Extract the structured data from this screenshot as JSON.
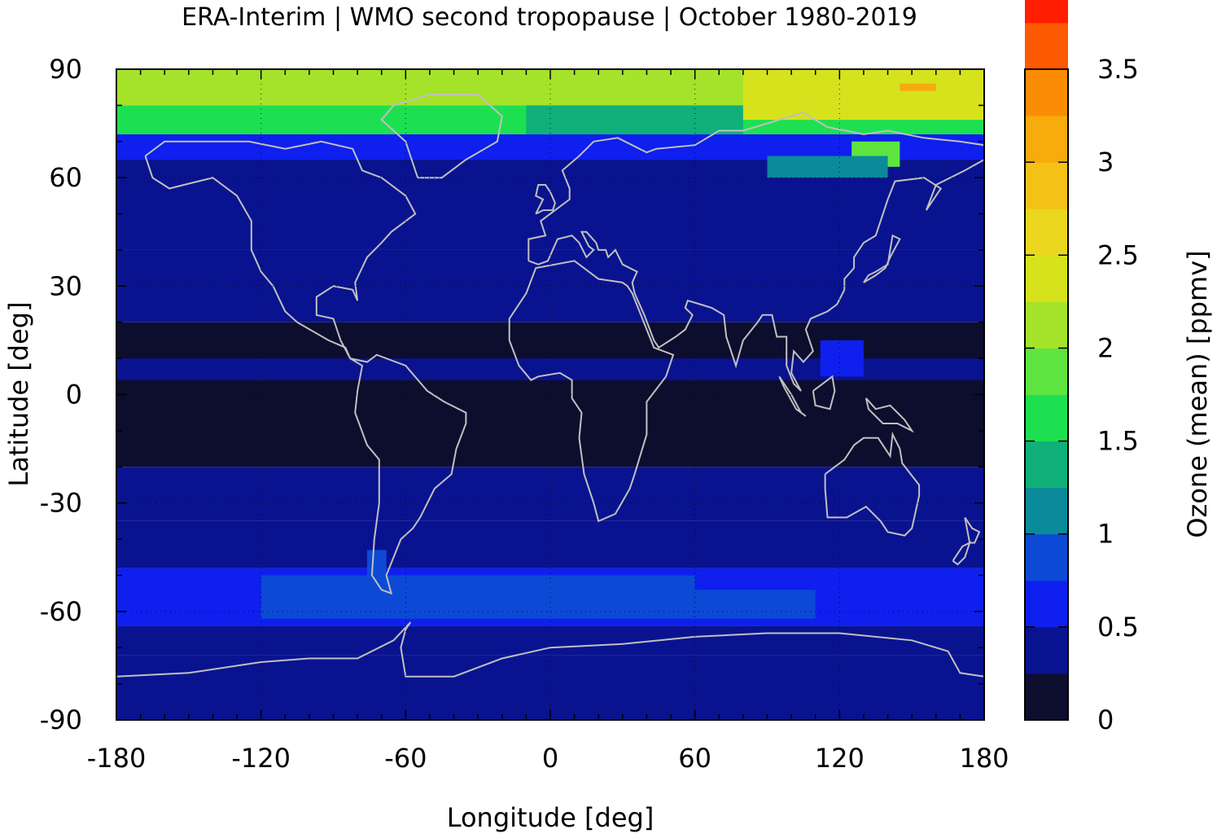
{
  "chart_data": {
    "type": "heatmap",
    "title": "ERA-Interim | WMO second tropopause | October 1980-2019",
    "xlabel": "Longitude [deg]",
    "ylabel": "Latitude [deg]",
    "xlim": [
      -180,
      180
    ],
    "ylim": [
      -90,
      90
    ],
    "x_ticks": [
      "-180",
      "-120",
      "-60",
      "0",
      "60",
      "120",
      "180"
    ],
    "y_ticks": [
      "90",
      "60",
      "30",
      "0",
      "-30",
      "-60",
      "-90"
    ],
    "x_tick_values": [
      -180,
      -120,
      -60,
      0,
      60,
      120,
      180
    ],
    "y_tick_values": [
      90,
      60,
      30,
      0,
      -30,
      -60,
      -90
    ],
    "grid": true,
    "colorbar": {
      "label": "Ozone (mean) [ppmv]",
      "range": [
        0,
        3.5
      ],
      "ticks": [
        "3.5",
        "3",
        "2.5",
        "2",
        "1.5",
        "1",
        "0.5",
        "0"
      ],
      "tick_values": [
        3.5,
        3,
        2.5,
        2,
        1.5,
        1,
        0.5,
        0
      ],
      "step": 0.25,
      "colors": [
        "#0d0e2e",
        "#0a138f",
        "#0e1fee",
        "#0c4ad6",
        "#0b8a9a",
        "#0fb07a",
        "#1de051",
        "#5ee540",
        "#a5e22a",
        "#d6e21c",
        "#ead71e",
        "#f4c117",
        "#f7ab0d",
        "#fb8c06",
        "#fd5903",
        "#ff1f00",
        "#f0171a",
        "#e02c2c",
        "#f07a7a",
        "#ffcece"
      ]
    },
    "latitude_bands": [
      {
        "lat_min": 80,
        "lat_max": 90,
        "value": 2.2
      },
      {
        "lat_min": 72,
        "lat_max": 80,
        "value": 1.5
      },
      {
        "lat_min": 65,
        "lat_max": 72,
        "value": 0.65
      },
      {
        "lat_min": 40,
        "lat_max": 65,
        "value": 0.4
      },
      {
        "lat_min": 20,
        "lat_max": 40,
        "value": 0.3
      },
      {
        "lat_min": -20,
        "lat_max": 20,
        "value": 0.1
      },
      {
        "lat_min": -35,
        "lat_max": -20,
        "value": 0.3
      },
      {
        "lat_min": -48,
        "lat_max": -35,
        "value": 0.45
      },
      {
        "lat_min": -64,
        "lat_max": -48,
        "value": 0.7
      },
      {
        "lat_min": -72,
        "lat_max": -64,
        "value": 0.4
      },
      {
        "lat_min": -90,
        "lat_max": -72,
        "value": 0.3
      }
    ],
    "features": [
      {
        "lon_min": -180,
        "lon_max": 180,
        "lat_min": 4,
        "lat_max": 10,
        "value": 0.3
      },
      {
        "lon_min": -120,
        "lon_max": 60,
        "lat_min": -62,
        "lat_max": -50,
        "value": 0.8
      },
      {
        "lon_min": 60,
        "lon_max": 110,
        "lat_min": -62,
        "lat_max": -54,
        "value": 0.75
      },
      {
        "lon_min": -76,
        "lon_max": -68,
        "lat_min": -55,
        "lat_max": -43,
        "value": 0.9
      },
      {
        "lon_min": -10,
        "lon_max": 80,
        "lat_min": 72,
        "lat_max": 80,
        "value": 1.3
      },
      {
        "lon_min": 80,
        "lon_max": 180,
        "lat_min": 76,
        "lat_max": 90,
        "value": 2.4
      },
      {
        "lon_min": 145,
        "lon_max": 160,
        "lat_min": 84,
        "lat_max": 86,
        "value": 3.0
      },
      {
        "lon_min": 125,
        "lon_max": 145,
        "lat_min": 63,
        "lat_max": 70,
        "value": 1.9
      },
      {
        "lon_min": 90,
        "lon_max": 140,
        "lat_min": 60,
        "lat_max": 66,
        "value": 1.0
      },
      {
        "lon_min": 112,
        "lon_max": 130,
        "lat_min": 5,
        "lat_max": 15,
        "value": 0.55
      }
    ],
    "overlay": "coastlines",
    "overlay_color": "#c0c0c0"
  }
}
